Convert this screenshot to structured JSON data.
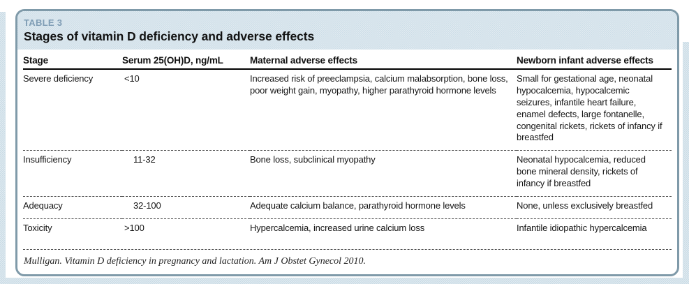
{
  "table": {
    "label": "TABLE 3",
    "title": "Stages of vitamin D deficiency and adverse effects",
    "columns": {
      "stage": "Stage",
      "serum": "Serum 25(OH)D, ng/mL",
      "maternal": "Maternal adverse effects",
      "newborn": "Newborn infant adverse effects"
    },
    "rows": [
      {
        "stage": "Severe deficiency",
        "serum": "<10",
        "maternal": "Increased risk of preeclampsia, calcium malabsorption, bone loss, poor weight gain, myopathy, higher parathyroid hormone levels",
        "newborn": "Small for gestational age, neonatal hypocalcemia, hypocalcemic seizures, infantile heart failure, enamel defects, large fontanelle, congenital rickets, rickets of infancy if breastfed"
      },
      {
        "stage": "Insufficiency",
        "serum": "11-32",
        "maternal": "Bone loss, subclinical myopathy",
        "newborn": "Neonatal hypocalcemia, reduced bone mineral density, rickets of infancy if breastfed"
      },
      {
        "stage": "Adequacy",
        "serum": "32-100",
        "maternal": "Adequate calcium balance, parathyroid hormone levels",
        "newborn": "None, unless exclusively breastfed"
      },
      {
        "stage": "Toxicity",
        "serum": ">100",
        "maternal": "Hypercalcemia, increased urine calcium loss",
        "newborn": "Infantile idiopathic hypercalcemia"
      }
    ],
    "footer_citation": "Mulligan. Vitamin D deficiency in pregnancy and lactation. Am J Obstet Gynecol 2010."
  },
  "colors": {
    "card_border": "#7f9aa9",
    "header_band": "#cddee8",
    "table_label": "#7f9db5",
    "body_text": "#161616",
    "separator": "#4a4a4a",
    "page_edge_strip": "#c9dbe5"
  }
}
